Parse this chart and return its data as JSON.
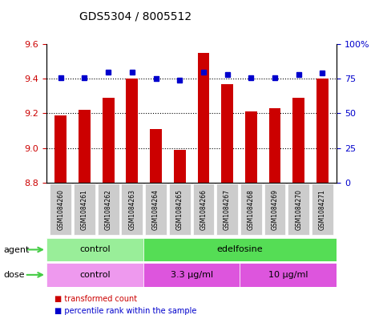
{
  "title": "GDS5304 / 8005512",
  "samples": [
    "GSM1084260",
    "GSM1084261",
    "GSM1084262",
    "GSM1084263",
    "GSM1084264",
    "GSM1084265",
    "GSM1084266",
    "GSM1084267",
    "GSM1084268",
    "GSM1084269",
    "GSM1084270",
    "GSM1084271"
  ],
  "bar_values": [
    9.19,
    9.22,
    9.29,
    9.4,
    9.11,
    8.99,
    9.55,
    9.37,
    9.21,
    9.23,
    9.29,
    9.4
  ],
  "dot_values": [
    76,
    76,
    80,
    80,
    75,
    74,
    80,
    78,
    76,
    76,
    78,
    79
  ],
  "bar_bottom": 8.8,
  "ylim_left": [
    8.8,
    9.6
  ],
  "ylim_right": [
    0,
    100
  ],
  "yticks_left": [
    8.8,
    9.0,
    9.2,
    9.4,
    9.6
  ],
  "yticks_right": [
    0,
    25,
    50,
    75,
    100
  ],
  "ytick_labels_right": [
    "0",
    "25",
    "50",
    "75",
    "100%"
  ],
  "bar_color": "#cc0000",
  "dot_color": "#0000cc",
  "agent_labels": [
    {
      "label": "control",
      "start": 0,
      "end": 4,
      "color": "#99ee99"
    },
    {
      "label": "edelfosine",
      "start": 4,
      "end": 12,
      "color": "#55dd55"
    }
  ],
  "dose_labels": [
    {
      "label": "control",
      "start": 0,
      "end": 4,
      "color": "#ee99ee"
    },
    {
      "label": "3.3 μg/ml",
      "start": 4,
      "end": 8,
      "color": "#dd55dd"
    },
    {
      "label": "10 μg/ml",
      "start": 8,
      "end": 12,
      "color": "#dd55dd"
    }
  ],
  "legend_items": [
    {
      "label": "transformed count",
      "color": "#cc0000"
    },
    {
      "label": "percentile rank within the sample",
      "color": "#0000cc"
    }
  ],
  "left_color": "#cc0000",
  "right_color": "#0000cc",
  "tick_bg_color": "#cccccc",
  "arrow_color": "#44cc44"
}
